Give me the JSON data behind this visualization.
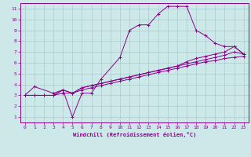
{
  "title": "",
  "xlabel": "Windchill (Refroidissement éolien,°C)",
  "ylabel": "",
  "bg_color": "#cce8e8",
  "line_color": "#8b008b",
  "grid_color": "#aacccc",
  "xlim": [
    -0.5,
    23.5
  ],
  "ylim": [
    0.5,
    11.5
  ],
  "xticks": [
    0,
    1,
    2,
    3,
    4,
    5,
    6,
    7,
    8,
    9,
    10,
    11,
    12,
    13,
    14,
    15,
    16,
    17,
    18,
    19,
    20,
    21,
    22,
    23
  ],
  "yticks": [
    1,
    2,
    3,
    4,
    5,
    6,
    7,
    8,
    9,
    10,
    11
  ],
  "line1_x": [
    0,
    1,
    2,
    3,
    4,
    5,
    6,
    7,
    8,
    9,
    10,
    11,
    12,
    13,
    14,
    15,
    16,
    17,
    18,
    19,
    20,
    21,
    22,
    23
  ],
  "line1_y": [
    3.0,
    3.0,
    3.0,
    3.0,
    3.2,
    3.2,
    3.5,
    3.7,
    3.9,
    4.1,
    4.3,
    4.5,
    4.7,
    4.9,
    5.1,
    5.3,
    5.5,
    5.7,
    5.9,
    6.1,
    6.2,
    6.4,
    6.5,
    6.6
  ],
  "line2_x": [
    0,
    1,
    2,
    3,
    4,
    5,
    6,
    7,
    8,
    9,
    10,
    11,
    12,
    13,
    14,
    15,
    16,
    17,
    18,
    19,
    20,
    21,
    22,
    23
  ],
  "line2_y": [
    3.0,
    3.0,
    3.0,
    3.0,
    3.5,
    3.2,
    3.7,
    3.9,
    4.1,
    4.3,
    4.5,
    4.7,
    4.9,
    5.1,
    5.3,
    5.5,
    5.7,
    6.1,
    6.4,
    6.6,
    6.8,
    7.0,
    7.5,
    6.8
  ],
  "line3_x": [
    0,
    1,
    3,
    4,
    5,
    6,
    7,
    8,
    10,
    11,
    12,
    13,
    14,
    15,
    16,
    17,
    18,
    19,
    20,
    21,
    22,
    23
  ],
  "line3_y": [
    3.0,
    3.8,
    3.2,
    3.5,
    1.0,
    3.2,
    3.2,
    4.5,
    6.5,
    9.0,
    9.5,
    9.5,
    10.5,
    11.2,
    11.2,
    11.2,
    9.0,
    8.5,
    7.8,
    7.5,
    7.5,
    6.8
  ],
  "line4_x": [
    0,
    1,
    2,
    3,
    4,
    5,
    6,
    7,
    8,
    9,
    10,
    11,
    12,
    13,
    14,
    15,
    16,
    17,
    18,
    19,
    20,
    21,
    22,
    23
  ],
  "line4_y": [
    3.0,
    3.0,
    3.0,
    3.0,
    3.5,
    3.2,
    3.7,
    3.9,
    4.1,
    4.3,
    4.5,
    4.7,
    4.9,
    5.1,
    5.3,
    5.5,
    5.7,
    5.9,
    6.1,
    6.3,
    6.5,
    6.7,
    7.0,
    6.8
  ]
}
